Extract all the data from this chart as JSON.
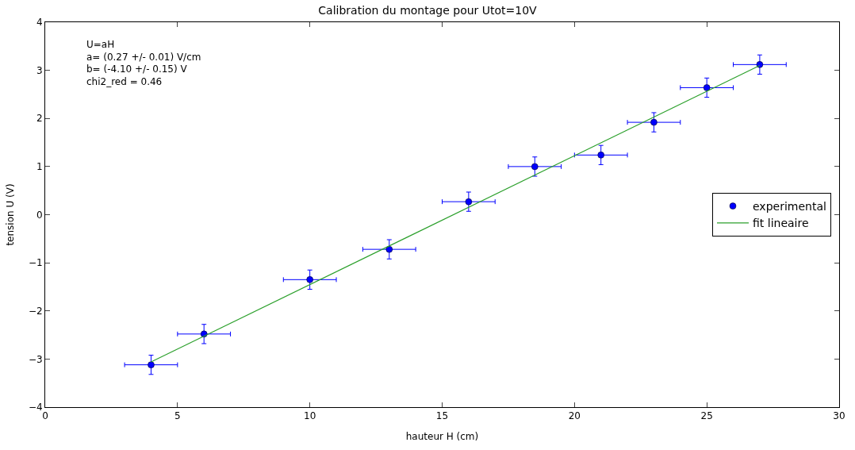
{
  "chart_data": {
    "type": "scatter",
    "title": "Calibration du montage pour Utot=10V",
    "xlabel": "hauteur H (cm)",
    "ylabel": "tension U (V)",
    "xlim": [
      0,
      30
    ],
    "xticks": [
      0,
      5,
      10,
      15,
      20,
      25,
      30
    ],
    "ylim": [
      -4,
      4
    ],
    "yticks": [
      -4,
      -3,
      -2,
      -1,
      0,
      1,
      2,
      3,
      4
    ],
    "grid": false,
    "legend": "right",
    "annotations": [
      "U=aH\na= (0.27 +/- 0.01) V/cm\nb= (-4.10 +/- 0.15) V\nchi2_red = 0.46"
    ],
    "series": [
      {
        "name": "experimental",
        "color": "#0000ff",
        "marker": "circle",
        "x": [
          4,
          6,
          10,
          13,
          16,
          18.5,
          21,
          23,
          25,
          27
        ],
        "values": [
          -3.12,
          -2.48,
          -1.35,
          -0.72,
          0.27,
          1.0,
          1.24,
          1.92,
          2.64,
          3.12
        ],
        "errors": [
          0.2,
          0.2,
          0.2,
          0.2,
          0.2,
          0.2,
          0.2,
          0.2,
          0.2,
          0.2
        ],
        "xerrors": [
          1,
          1,
          1,
          1,
          1,
          1,
          1,
          1,
          1,
          1
        ]
      },
      {
        "name": "fit lineaire",
        "type": "line",
        "color": "#2ca02c",
        "marker": "none",
        "line_style": "solid",
        "x": [
          4,
          27
        ],
        "values": [
          -3.06,
          3.1
        ]
      }
    ]
  }
}
